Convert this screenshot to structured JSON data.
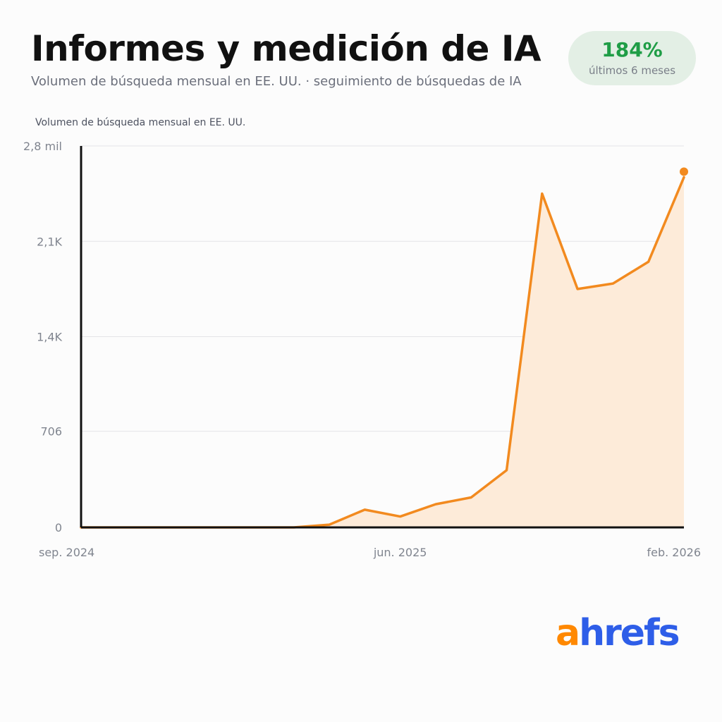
{
  "header": {
    "title": "Informes y medición de IA",
    "subtitle": "Volumen de búsqueda mensual en EE. UU. · seguimiento de búsquedas de IA"
  },
  "badge": {
    "value": "184%",
    "label": "últimos 6 meses",
    "color": "#1f9d46"
  },
  "logo": {
    "first": "a",
    "rest": "hrefs",
    "first_color": "#ff8800",
    "rest_color": "#2e5ee8"
  },
  "chart_data": {
    "type": "area",
    "title": "Informes y medición de IA",
    "ylabel": "Volumen de búsqueda mensual en EE. UU.",
    "xlabel": "",
    "x": [
      "sep. 2024",
      "oct. 2024",
      "nov. 2024",
      "dic. 2024",
      "ene. 2025",
      "feb. 2025",
      "mar. 2025",
      "abr. 2025",
      "may. 2025",
      "jun. 2025",
      "jul. 2025",
      "ago. 2025",
      "sep. 2025",
      "oct. 2025",
      "nov. 2025",
      "dic. 2025",
      "ene. 2026",
      "feb. 2026"
    ],
    "values": [
      0,
      0,
      0,
      0,
      0,
      0,
      0,
      20,
      130,
      80,
      170,
      220,
      420,
      2450,
      1750,
      1790,
      1950,
      2570
    ],
    "ylim": [
      0,
      2800
    ],
    "yticks": [
      0,
      706,
      1400,
      2100,
      2800
    ],
    "ytick_labels": [
      "0",
      "706",
      "1,4K",
      "2,1K",
      "2,8 mil"
    ],
    "xtick_labels": [
      {
        "label": "sep. 2024",
        "index": 0
      },
      {
        "label": "jun. 2025",
        "index": 9
      },
      {
        "label": "feb. 2026",
        "index": 17
      }
    ],
    "grid": true,
    "line_color": "#f28a1f",
    "fill_color": "#fdebd9"
  }
}
